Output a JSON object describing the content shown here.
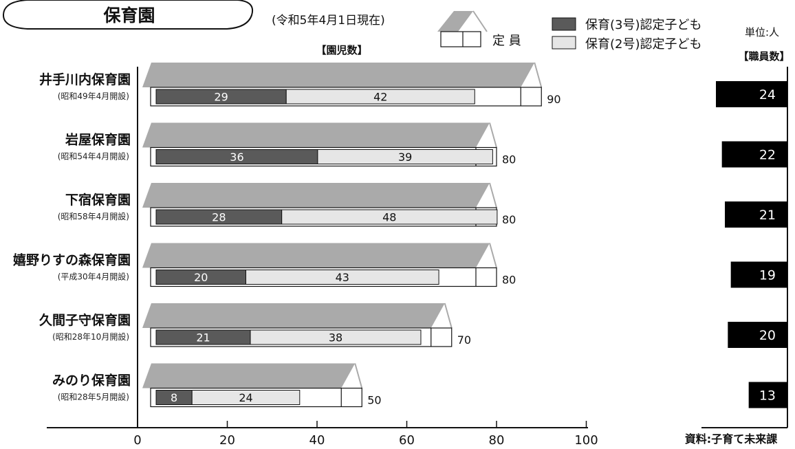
{
  "header": {
    "title": "保育園",
    "date": "(令和5年4月1日現在)",
    "unit": "単位:人",
    "section_children": "【園児数】",
    "section_staff": "【職員数】",
    "source": "資料:子育て未来課"
  },
  "legend": {
    "capacity": "定 員",
    "series3": "保育(3号)認定子ども",
    "series2": "保育(2号)認定子ども"
  },
  "colors": {
    "series3": "#5a5a5a",
    "series2": "#e6e6e6",
    "roof": "#aaaaaa",
    "staff": "#000000"
  },
  "chart_data": {
    "type": "bar",
    "title": "保育園",
    "xlim": [
      0,
      100
    ],
    "xticks": [
      "0",
      "20",
      "40",
      "60",
      "80",
      "100"
    ],
    "categories": [
      "井手川内保育園",
      "岩屋保育園",
      "下宿保育園",
      "嬉野りすの森保育園",
      "久間子守保育園",
      "みのり保育園"
    ],
    "subtitles": [
      "(昭和49年4月開設)",
      "(昭和54年4月開設)",
      "(昭和58年4月開設)",
      "(平成30年4月開設)",
      "(昭和28年10月開設)",
      "(昭和28年5月開設)"
    ],
    "series": [
      {
        "name": "保育(3号)認定子ども",
        "values": [
          29,
          36,
          28,
          20,
          21,
          8
        ]
      },
      {
        "name": "保育(2号)認定子ども",
        "values": [
          42,
          39,
          48,
          43,
          38,
          24
        ]
      }
    ],
    "capacity": {
      "name": "定 員",
      "values": [
        90,
        80,
        80,
        80,
        70,
        50
      ]
    },
    "staff": {
      "name": "【職員数】",
      "values": [
        24,
        22,
        21,
        19,
        20,
        13
      ]
    }
  }
}
